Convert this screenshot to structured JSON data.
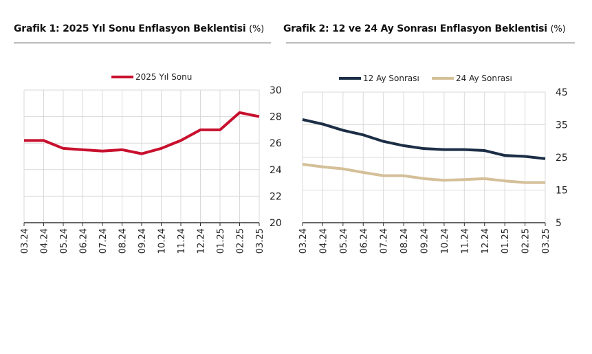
{
  "chart_data": [
    {
      "type": "line",
      "title": "Grafik 1: 2025 Yıl Sonu Enflasyon Beklentisi",
      "unit": "(%)",
      "categories": [
        "03.24",
        "04.24",
        "05.24",
        "06.24",
        "07.24",
        "08.24",
        "09.24",
        "10.24",
        "11.24",
        "12.24",
        "01.25",
        "02.25",
        "03.25"
      ],
      "series": [
        {
          "name": "2025 Yıl Sonu",
          "color": "#c8102e",
          "values": [
            26.2,
            26.2,
            25.6,
            25.5,
            25.4,
            25.5,
            25.2,
            25.6,
            26.2,
            27.0,
            27.0,
            28.3,
            28.0
          ]
        }
      ],
      "ylim": [
        20,
        30
      ],
      "yticks": [
        20,
        22,
        24,
        26,
        28,
        30
      ],
      "grid": true,
      "legend": "top",
      "yaxis_side": "right"
    },
    {
      "type": "line",
      "title": "Grafik 2: 12 ve 24 Ay Sonrası Enflasyon Beklentisi",
      "unit": "(%)",
      "categories": [
        "03.24",
        "04.24",
        "05.24",
        "06.24",
        "07.24",
        "08.24",
        "09.24",
        "10.24",
        "11.24",
        "12.24",
        "01.25",
        "02.25",
        "03.25"
      ],
      "series": [
        {
          "name": "12 Ay Sonrası",
          "color": "#1c2e45",
          "values": [
            36.6,
            35.2,
            33.3,
            31.9,
            29.9,
            28.6,
            27.7,
            27.4,
            27.4,
            27.1,
            25.6,
            25.3,
            24.6
          ]
        },
        {
          "name": "24 Ay Sonrası",
          "color": "#d4bf98",
          "values": [
            22.9,
            22.1,
            21.5,
            20.4,
            19.4,
            19.4,
            18.5,
            18.0,
            18.2,
            18.5,
            17.8,
            17.3,
            17.3
          ]
        }
      ],
      "ylim": [
        5,
        45
      ],
      "yticks": [
        5,
        15,
        25,
        35,
        45
      ],
      "grid": true,
      "legend": "top",
      "yaxis_side": "right"
    }
  ]
}
